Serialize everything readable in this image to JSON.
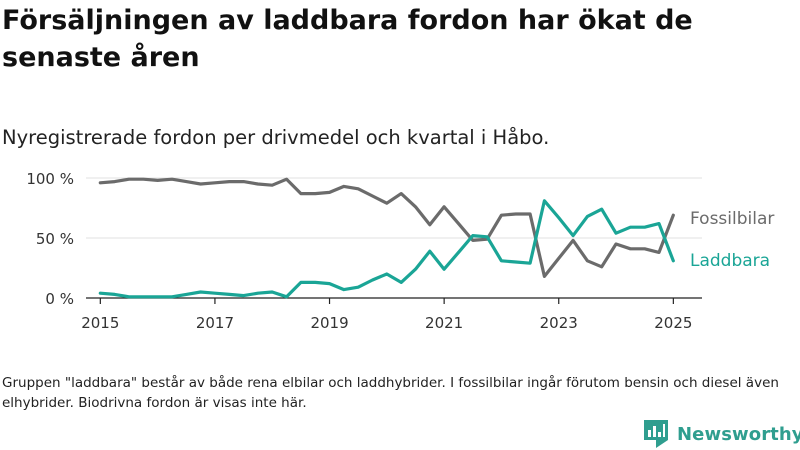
{
  "title": "Försäljningen av laddbara fordon har ökat de senaste åren",
  "subtitle": "Nyregistrerade fordon per drivmedel och kvartal i Håbo.",
  "note": "Gruppen \"laddbara\" består av både rena elbilar och laddhybrider. I fossilbilar ingår förutom bensin och diesel även elhybrider. Biodrivna fordon är visas inte här.",
  "logo": {
    "text": "Newsworthy",
    "icon": "newsworthy-bar-chart-icon",
    "color": "#2f9e8f"
  },
  "chart_data": {
    "type": "line",
    "x_start": 2015,
    "x_step": 0.25,
    "xlim": [
      2014.75,
      2025.5
    ],
    "x_ticks": [
      2015,
      2017,
      2019,
      2021,
      2023,
      2025
    ],
    "x_tick_labels": [
      "2015",
      "2017",
      "2019",
      "2021",
      "2023",
      "2025"
    ],
    "ylim": [
      0,
      100
    ],
    "y_ticks": [
      0,
      50,
      100
    ],
    "y_tick_labels": [
      "0 %",
      "50 %",
      "100 %"
    ],
    "grid": true,
    "series": [
      {
        "name": "Fossilbilar",
        "color": "#6b6b6b",
        "values": [
          96,
          97,
          99,
          99,
          98,
          99,
          97,
          95,
          96,
          97,
          97,
          95,
          94,
          99,
          87,
          87,
          88,
          93,
          91,
          85,
          79,
          87,
          76,
          61,
          76,
          62,
          48,
          49,
          69,
          70,
          70,
          18,
          33,
          48,
          31,
          26,
          45,
          41,
          41,
          38,
          69
        ]
      },
      {
        "name": "Laddbara",
        "color": "#1aa596",
        "values": [
          4,
          3,
          1,
          1,
          1,
          1,
          3,
          5,
          4,
          3,
          2,
          4,
          5,
          1,
          13,
          13,
          12,
          7,
          9,
          15,
          20,
          13,
          24,
          39,
          24,
          38,
          52,
          51,
          31,
          30,
          29,
          81,
          67,
          52,
          68,
          74,
          54,
          59,
          59,
          62,
          31
        ]
      }
    ]
  }
}
